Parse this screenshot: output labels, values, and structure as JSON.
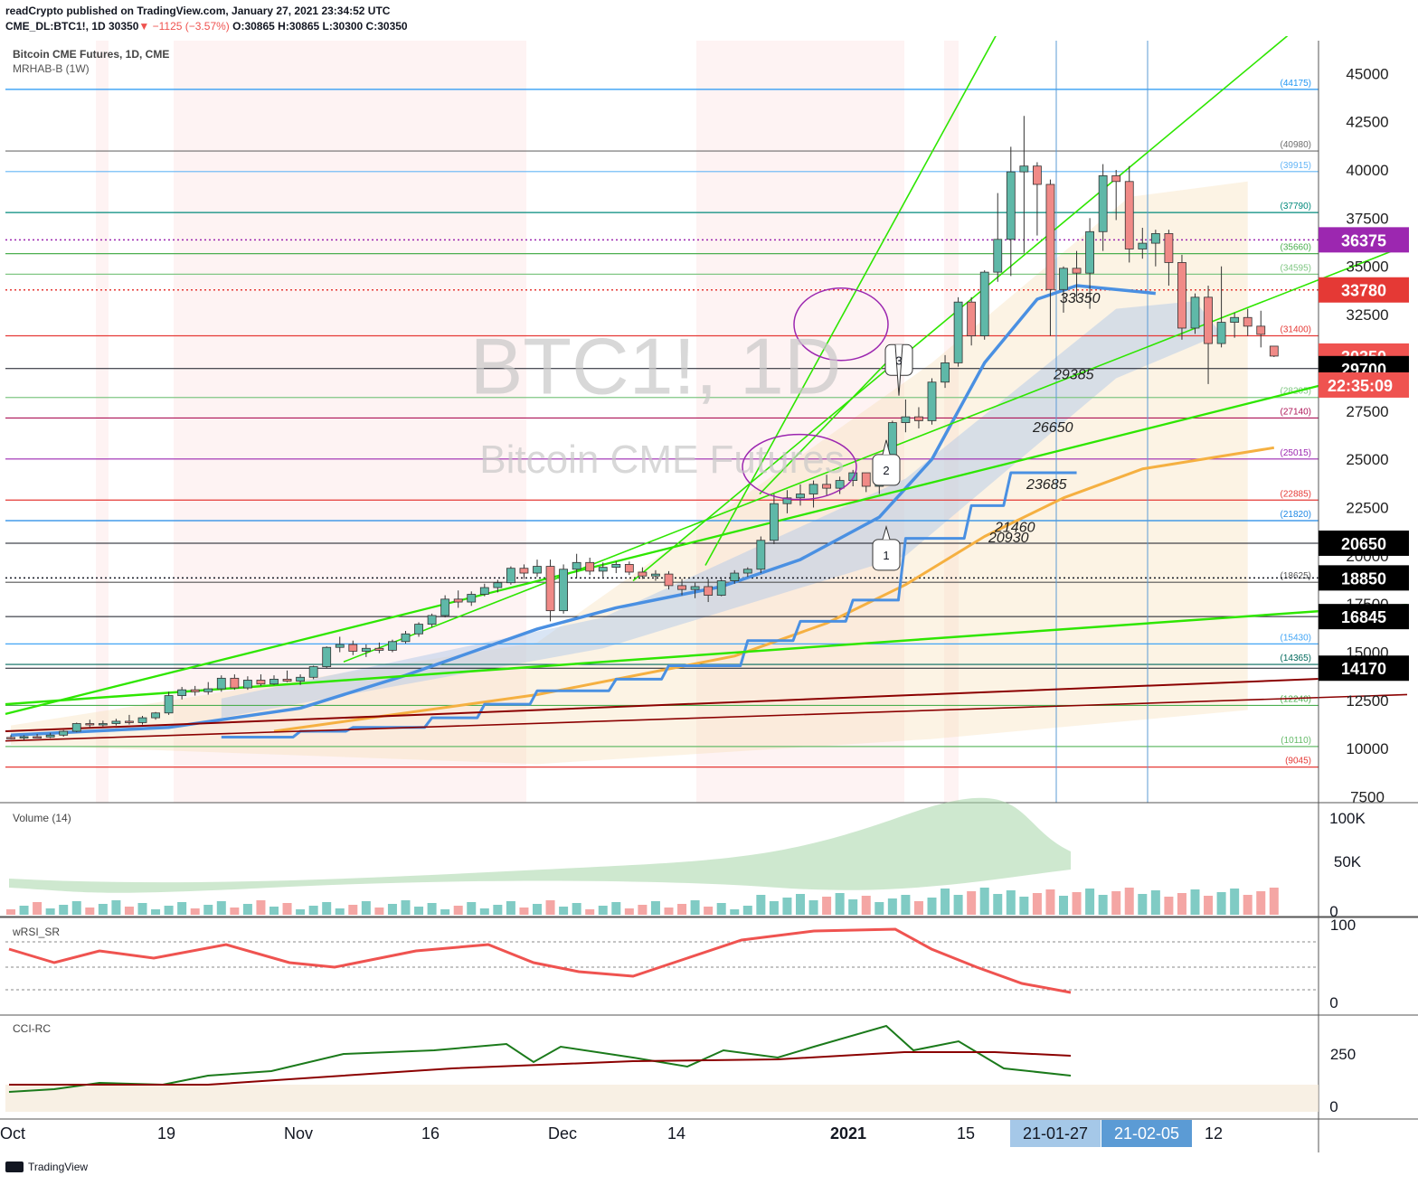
{
  "header": {
    "publisher_line": "readCrypto published on TradingView.com, January 27, 2021 23:34:52 UTC",
    "symbol_line": "CME_DL:BTC1!, 1D 30350",
    "change": "−1125 (−3.57%)",
    "ohlc": "O:30865 H:30865 L:30300 C:30350"
  },
  "panes": {
    "main_title": "Bitcoin CME Futures, 1D, CME",
    "main_indicator": "MRHAB-B (1W)",
    "watermark_symbol": "BTC1!, 1D",
    "watermark_name": "Bitcoin CME Futures",
    "volume_title": "Volume (14)",
    "rsi_title": "wRSI_SR",
    "cci_title": "CCI-RC"
  },
  "footer": {
    "brand": "TradingView"
  },
  "colors": {
    "up": "#26a69a",
    "down": "#ef5350",
    "trendline": "#2ee600",
    "ma_blue": "#4a90e2",
    "ma_orange": "#f5b041",
    "purple": "#9c27b0",
    "dark_red": "#8b0000"
  },
  "chart_data": {
    "type": "candlestick",
    "symbol": "BTC1!",
    "y_axis": {
      "ticks": [
        45000,
        42500,
        40000,
        37500,
        35000,
        32500,
        30000,
        27500,
        25000,
        22500,
        20000,
        17500,
        15000,
        12500,
        10000,
        7500
      ],
      "ylim": [
        7200,
        46700
      ]
    },
    "x_axis_ticks": [
      "Oct",
      "19",
      "Nov",
      "16",
      "Dec",
      "14",
      "2021",
      "15",
      "21-01-27",
      "21-02-05",
      "12"
    ],
    "candles": [
      {
        "o": 10580,
        "h": 10700,
        "l": 10480,
        "c": 10560
      },
      {
        "o": 10560,
        "h": 10690,
        "l": 10440,
        "c": 10620
      },
      {
        "o": 10620,
        "h": 10760,
        "l": 10560,
        "c": 10600
      },
      {
        "o": 10600,
        "h": 10820,
        "l": 10550,
        "c": 10700
      },
      {
        "o": 10700,
        "h": 10960,
        "l": 10620,
        "c": 10900
      },
      {
        "o": 10900,
        "h": 11350,
        "l": 10850,
        "c": 11300
      },
      {
        "o": 11300,
        "h": 11500,
        "l": 11100,
        "c": 11250
      },
      {
        "o": 11250,
        "h": 11450,
        "l": 11150,
        "c": 11300
      },
      {
        "o": 11300,
        "h": 11550,
        "l": 11200,
        "c": 11420
      },
      {
        "o": 11420,
        "h": 11750,
        "l": 11250,
        "c": 11350
      },
      {
        "o": 11350,
        "h": 11700,
        "l": 11250,
        "c": 11600
      },
      {
        "o": 11600,
        "h": 11900,
        "l": 11500,
        "c": 11850
      },
      {
        "o": 11850,
        "h": 12950,
        "l": 11750,
        "c": 12750
      },
      {
        "o": 12750,
        "h": 13200,
        "l": 12550,
        "c": 13050
      },
      {
        "o": 13050,
        "h": 13250,
        "l": 12750,
        "c": 12950
      },
      {
        "o": 12950,
        "h": 13450,
        "l": 12800,
        "c": 13100
      },
      {
        "o": 13100,
        "h": 13800,
        "l": 12950,
        "c": 13650
      },
      {
        "o": 13650,
        "h": 13850,
        "l": 13050,
        "c": 13150
      },
      {
        "o": 13150,
        "h": 13750,
        "l": 13050,
        "c": 13550
      },
      {
        "o": 13550,
        "h": 13850,
        "l": 13250,
        "c": 13350
      },
      {
        "o": 13350,
        "h": 13800,
        "l": 13300,
        "c": 13600
      },
      {
        "o": 13600,
        "h": 14050,
        "l": 13450,
        "c": 13500
      },
      {
        "o": 13500,
        "h": 13850,
        "l": 13300,
        "c": 13700
      },
      {
        "o": 13700,
        "h": 14300,
        "l": 13600,
        "c": 14250
      },
      {
        "o": 14250,
        "h": 15300,
        "l": 14150,
        "c": 15250
      },
      {
        "o": 15250,
        "h": 15800,
        "l": 15000,
        "c": 15400
      },
      {
        "o": 15400,
        "h": 15600,
        "l": 14850,
        "c": 15050
      },
      {
        "o": 15050,
        "h": 15400,
        "l": 14750,
        "c": 15200
      },
      {
        "o": 15200,
        "h": 15500,
        "l": 14950,
        "c": 15100
      },
      {
        "o": 15100,
        "h": 15650,
        "l": 15000,
        "c": 15550
      },
      {
        "o": 15550,
        "h": 16100,
        "l": 15450,
        "c": 15950
      },
      {
        "o": 15950,
        "h": 16550,
        "l": 15800,
        "c": 16450
      },
      {
        "o": 16450,
        "h": 17000,
        "l": 16300,
        "c": 16900
      },
      {
        "o": 16900,
        "h": 17950,
        "l": 16800,
        "c": 17750
      },
      {
        "o": 17750,
        "h": 18200,
        "l": 17300,
        "c": 17600
      },
      {
        "o": 17600,
        "h": 18150,
        "l": 17400,
        "c": 18000
      },
      {
        "o": 18000,
        "h": 18550,
        "l": 17900,
        "c": 18350
      },
      {
        "o": 18350,
        "h": 18750,
        "l": 18100,
        "c": 18600
      },
      {
        "o": 18600,
        "h": 19450,
        "l": 18500,
        "c": 19350
      },
      {
        "o": 19350,
        "h": 19550,
        "l": 18800,
        "c": 19100
      },
      {
        "o": 19100,
        "h": 19800,
        "l": 18900,
        "c": 19450
      },
      {
        "o": 19450,
        "h": 19800,
        "l": 16600,
        "c": 17150
      },
      {
        "o": 17150,
        "h": 19550,
        "l": 17000,
        "c": 19300
      },
      {
        "o": 19300,
        "h": 20100,
        "l": 18850,
        "c": 19650
      },
      {
        "o": 19650,
        "h": 19900,
        "l": 19000,
        "c": 19200
      },
      {
        "o": 19200,
        "h": 19650,
        "l": 18900,
        "c": 19400
      },
      {
        "o": 19400,
        "h": 19700,
        "l": 19100,
        "c": 19550
      },
      {
        "o": 19550,
        "h": 19700,
        "l": 19000,
        "c": 19150
      },
      {
        "o": 19150,
        "h": 19400,
        "l": 18800,
        "c": 18950
      },
      {
        "o": 18950,
        "h": 19250,
        "l": 18700,
        "c": 19050
      },
      {
        "o": 19050,
        "h": 19200,
        "l": 18250,
        "c": 18450
      },
      {
        "o": 18450,
        "h": 18800,
        "l": 17950,
        "c": 18250
      },
      {
        "o": 18250,
        "h": 18600,
        "l": 17800,
        "c": 18400
      },
      {
        "o": 18400,
        "h": 18800,
        "l": 17600,
        "c": 17950
      },
      {
        "o": 17950,
        "h": 18800,
        "l": 17900,
        "c": 18700
      },
      {
        "o": 18700,
        "h": 19250,
        "l": 18550,
        "c": 19100
      },
      {
        "o": 19100,
        "h": 19400,
        "l": 18900,
        "c": 19300
      },
      {
        "o": 19300,
        "h": 21000,
        "l": 19100,
        "c": 20800
      },
      {
        "o": 20800,
        "h": 23200,
        "l": 20600,
        "c": 22700
      },
      {
        "o": 22700,
        "h": 23400,
        "l": 22200,
        "c": 23000
      },
      {
        "o": 23000,
        "h": 23700,
        "l": 22600,
        "c": 23200
      },
      {
        "o": 23200,
        "h": 23900,
        "l": 22500,
        "c": 23700
      },
      {
        "o": 23700,
        "h": 24200,
        "l": 23100,
        "c": 23500
      },
      {
        "o": 23500,
        "h": 24100,
        "l": 23200,
        "c": 23900
      },
      {
        "o": 23900,
        "h": 24450,
        "l": 23600,
        "c": 24300
      },
      {
        "o": 24300,
        "h": 24300,
        "l": 23300,
        "c": 23600
      },
      {
        "o": 23600,
        "h": 24100,
        "l": 23200,
        "c": 23950
      },
      {
        "o": 23950,
        "h": 27000,
        "l": 23850,
        "c": 26900
      },
      {
        "o": 26900,
        "h": 28100,
        "l": 26400,
        "c": 27200
      },
      {
        "o": 27200,
        "h": 27700,
        "l": 26600,
        "c": 27000
      },
      {
        "o": 27000,
        "h": 29200,
        "l": 26800,
        "c": 29000
      },
      {
        "o": 29000,
        "h": 30400,
        "l": 28700,
        "c": 30000
      },
      {
        "o": 30000,
        "h": 33400,
        "l": 29800,
        "c": 33150
      },
      {
        "o": 33150,
        "h": 33400,
        "l": 30900,
        "c": 31400
      },
      {
        "o": 31400,
        "h": 34800,
        "l": 31200,
        "c": 34700
      },
      {
        "o": 34700,
        "h": 38800,
        "l": 34200,
        "c": 36400
      },
      {
        "o": 36400,
        "h": 41200,
        "l": 34500,
        "c": 39900
      },
      {
        "o": 39900,
        "h": 42800,
        "l": 35700,
        "c": 40200
      },
      {
        "o": 40200,
        "h": 40400,
        "l": 36600,
        "c": 39250
      },
      {
        "o": 39250,
        "h": 39500,
        "l": 31400,
        "c": 33800
      },
      {
        "o": 33800,
        "h": 35000,
        "l": 32600,
        "c": 34900
      },
      {
        "o": 34900,
        "h": 35800,
        "l": 33200,
        "c": 34650
      },
      {
        "o": 34650,
        "h": 37500,
        "l": 32800,
        "c": 36800
      },
      {
        "o": 36800,
        "h": 40300,
        "l": 35800,
        "c": 39700
      },
      {
        "o": 39700,
        "h": 40000,
        "l": 37400,
        "c": 39400
      },
      {
        "o": 39400,
        "h": 40200,
        "l": 35200,
        "c": 35900
      },
      {
        "o": 35900,
        "h": 37000,
        "l": 35400,
        "c": 36200
      },
      {
        "o": 36200,
        "h": 36900,
        "l": 35000,
        "c": 36700
      },
      {
        "o": 36700,
        "h": 36900,
        "l": 34000,
        "c": 35200
      },
      {
        "o": 35200,
        "h": 35600,
        "l": 31200,
        "c": 31800
      },
      {
        "o": 31800,
        "h": 33600,
        "l": 31500,
        "c": 33400
      },
      {
        "o": 33400,
        "h": 34000,
        "l": 28900,
        "c": 31000
      },
      {
        "o": 31000,
        "h": 35000,
        "l": 30800,
        "c": 32100
      },
      {
        "o": 32100,
        "h": 32600,
        "l": 31300,
        "c": 32350
      },
      {
        "o": 32350,
        "h": 32800,
        "l": 31400,
        "c": 31900
      },
      {
        "o": 31900,
        "h": 32700,
        "l": 30800,
        "c": 31475
      },
      {
        "o": 30865,
        "h": 30865,
        "l": 30300,
        "c": 30350
      }
    ],
    "horizontal_levels": [
      {
        "value": 44175,
        "label": "(44175)"
      },
      {
        "value": 40980,
        "label": "(40980)"
      },
      {
        "value": 39915,
        "label": "(39915)"
      },
      {
        "value": 37790,
        "label": "(37790)"
      },
      {
        "value": 35660,
        "label": "(35660)"
      },
      {
        "value": 34595,
        "label": "(34595)"
      },
      {
        "value": 31400,
        "label": "(31400)"
      },
      {
        "value": 28205,
        "label": "(28205)"
      },
      {
        "value": 27140,
        "label": "(27140)"
      },
      {
        "value": 25015,
        "label": "(25015)"
      },
      {
        "value": 22885,
        "label": "(22885)"
      },
      {
        "value": 21820,
        "label": "(21820)"
      },
      {
        "value": 18625,
        "label": "(18625)"
      },
      {
        "value": 15430,
        "label": "(15430)"
      },
      {
        "value": 14365,
        "label": "(14365)"
      },
      {
        "value": 12240,
        "label": "(12240)"
      },
      {
        "value": 10110,
        "label": "(10110)"
      },
      {
        "value": 9045,
        "label": "(9045)"
      }
    ],
    "price_badges": [
      {
        "value": 36375,
        "label": "36375"
      },
      {
        "value": 33780,
        "label": "33780"
      },
      {
        "value": 30350,
        "label": "30350"
      },
      {
        "value": 29700,
        "label": "29700"
      },
      {
        "value": 20650,
        "label": "20650"
      },
      {
        "value": 18850,
        "label": "18850"
      },
      {
        "value": 16845,
        "label": "16845"
      },
      {
        "value": 14170,
        "label": "14170"
      }
    ],
    "countdown": "22:35:09",
    "annotations": [
      {
        "text": "33350",
        "value": 33350
      },
      {
        "text": "29385",
        "value": 29385
      },
      {
        "text": "26650",
        "value": 26650
      },
      {
        "text": "23685",
        "value": 23685
      },
      {
        "text": "21460",
        "value": 21460
      },
      {
        "text": "20930",
        "value": 20930
      }
    ],
    "callouts": [
      "1",
      "2",
      "3"
    ],
    "date_markers": [
      "21-01-27",
      "21-02-05"
    ],
    "volume_axis": [
      "100K",
      "50K",
      "0"
    ],
    "rsi_axis": [
      "100",
      "0"
    ],
    "cci_axis": [
      "250",
      "0"
    ]
  }
}
